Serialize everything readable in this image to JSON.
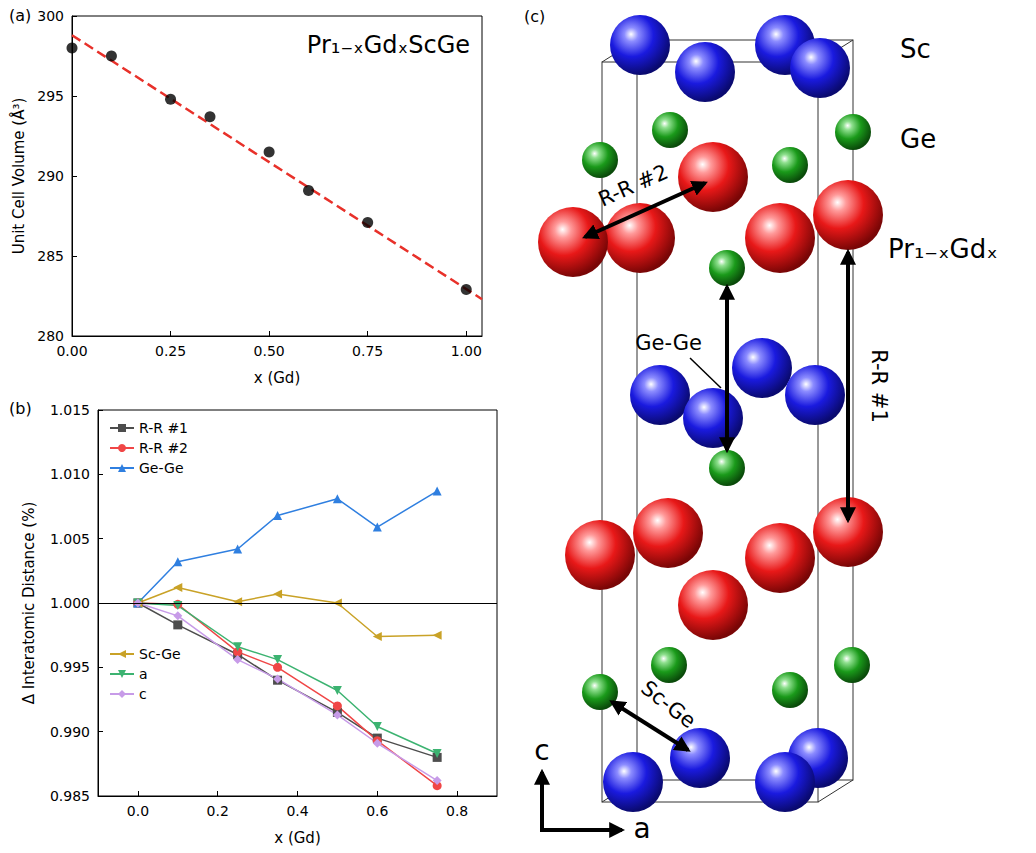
{
  "chart_data": [
    {
      "type": "scatter",
      "label": "(a)",
      "annotations": [
        "Pr₁₋ₓGdₓScGe"
      ],
      "x_label": "x (Gd)",
      "y_label": "Unit Cell Volume (Å³)",
      "series": [
        {
          "type": "line",
          "color": "#e8312a",
          "line_style": "dashed",
          "x": [
            0,
            1.04
          ],
          "values": [
            298.8,
            282.3
          ]
        },
        {
          "type": "scatter",
          "color": "#000000",
          "marker": "circle",
          "x": [
            0,
            0.1,
            0.25,
            0.35,
            0.5,
            0.6,
            0.75,
            1.0
          ],
          "values": [
            298.0,
            297.5,
            294.8,
            293.7,
            291.5,
            289.1,
            287.1,
            282.9
          ]
        }
      ],
      "xlim": [
        0,
        1.04
      ],
      "xticks": [
        {
          "value": 0,
          "label": "0.00"
        },
        {
          "value": 0.25,
          "label": "0.25"
        },
        {
          "value": 0.5,
          "label": "0.50"
        },
        {
          "value": 0.75,
          "label": "0.75"
        },
        {
          "value": 1.0,
          "label": "1.00"
        }
      ],
      "ylim": [
        280,
        300
      ],
      "yticks": [
        280,
        285,
        290,
        295,
        300
      ],
      "grid": false
    },
    {
      "type": "line",
      "label": "(b)",
      "x_label": "x (Gd)",
      "y_label": "Δ Interatomic Distance (%)",
      "x": [
        0,
        0.1,
        0.25,
        0.35,
        0.5,
        0.6,
        0.75
      ],
      "series": [
        {
          "name": "R-R #1",
          "color": "#4d4d4d",
          "marker": "square",
          "values": [
            1.0,
            0.9983,
            0.996,
            0.994,
            0.9915,
            0.9895,
            0.988
          ]
        },
        {
          "name": "R-R #2",
          "color": "#f04646",
          "marker": "circle",
          "values": [
            1.0,
            0.9999,
            0.9962,
            0.995,
            0.992,
            0.9893,
            0.9858
          ]
        },
        {
          "name": "Ge-Ge",
          "color": "#2f7fe0",
          "marker": "triangle-up",
          "values": [
            1.0,
            1.0032,
            1.0042,
            1.0068,
            1.0081,
            1.0059,
            1.0087
          ]
        },
        {
          "name": "Sc-Ge",
          "color": "#c9a227",
          "marker": "triangle-left",
          "values": [
            1.0,
            1.0012,
            1.0001,
            1.0007,
            1.0,
            0.9974,
            0.9975
          ]
        },
        {
          "name": "a",
          "color": "#3cb371",
          "marker": "triangle-down",
          "values": [
            1.0,
            0.9998,
            0.9966,
            0.9956,
            0.9932,
            0.9904,
            0.9883
          ]
        },
        {
          "name": "c",
          "color": "#c79be8",
          "marker": "diamond",
          "values": [
            1.0,
            0.999,
            0.9956,
            0.9941,
            0.9913,
            0.9891,
            0.9862
          ]
        }
      ],
      "hlines": [
        1.0
      ],
      "xlim": [
        -0.1,
        0.9
      ],
      "xticks": [
        {
          "value": 0,
          "label": "0.0"
        },
        {
          "value": 0.2,
          "label": "0.2"
        },
        {
          "value": 0.4,
          "label": "0.4"
        },
        {
          "value": 0.6,
          "label": "0.6"
        },
        {
          "value": 0.8,
          "label": "0.8"
        }
      ],
      "ylim": [
        0.985,
        1.015
      ],
      "yticks": [
        {
          "value": 0.985,
          "label": "0.985"
        },
        {
          "value": 0.99,
          "label": "0.990"
        },
        {
          "value": 0.995,
          "label": "0.995"
        },
        {
          "value": 1.0,
          "label": "1.000"
        },
        {
          "value": 1.005,
          "label": "1.005"
        },
        {
          "value": 1.01,
          "label": "1.010"
        },
        {
          "value": 1.015,
          "label": "1.015"
        }
      ],
      "grid": false,
      "legend": "left"
    }
  ],
  "diagram": {
    "label": "(c)",
    "species_labels": [
      "Sc",
      "Ge",
      "Pr₁₋ₓGdₓ"
    ],
    "distance_labels": [
      "R-R #2",
      "Ge-Ge",
      "R-R #1",
      "Sc-Ge"
    ],
    "axis_labels": [
      "c",
      "a"
    ]
  }
}
